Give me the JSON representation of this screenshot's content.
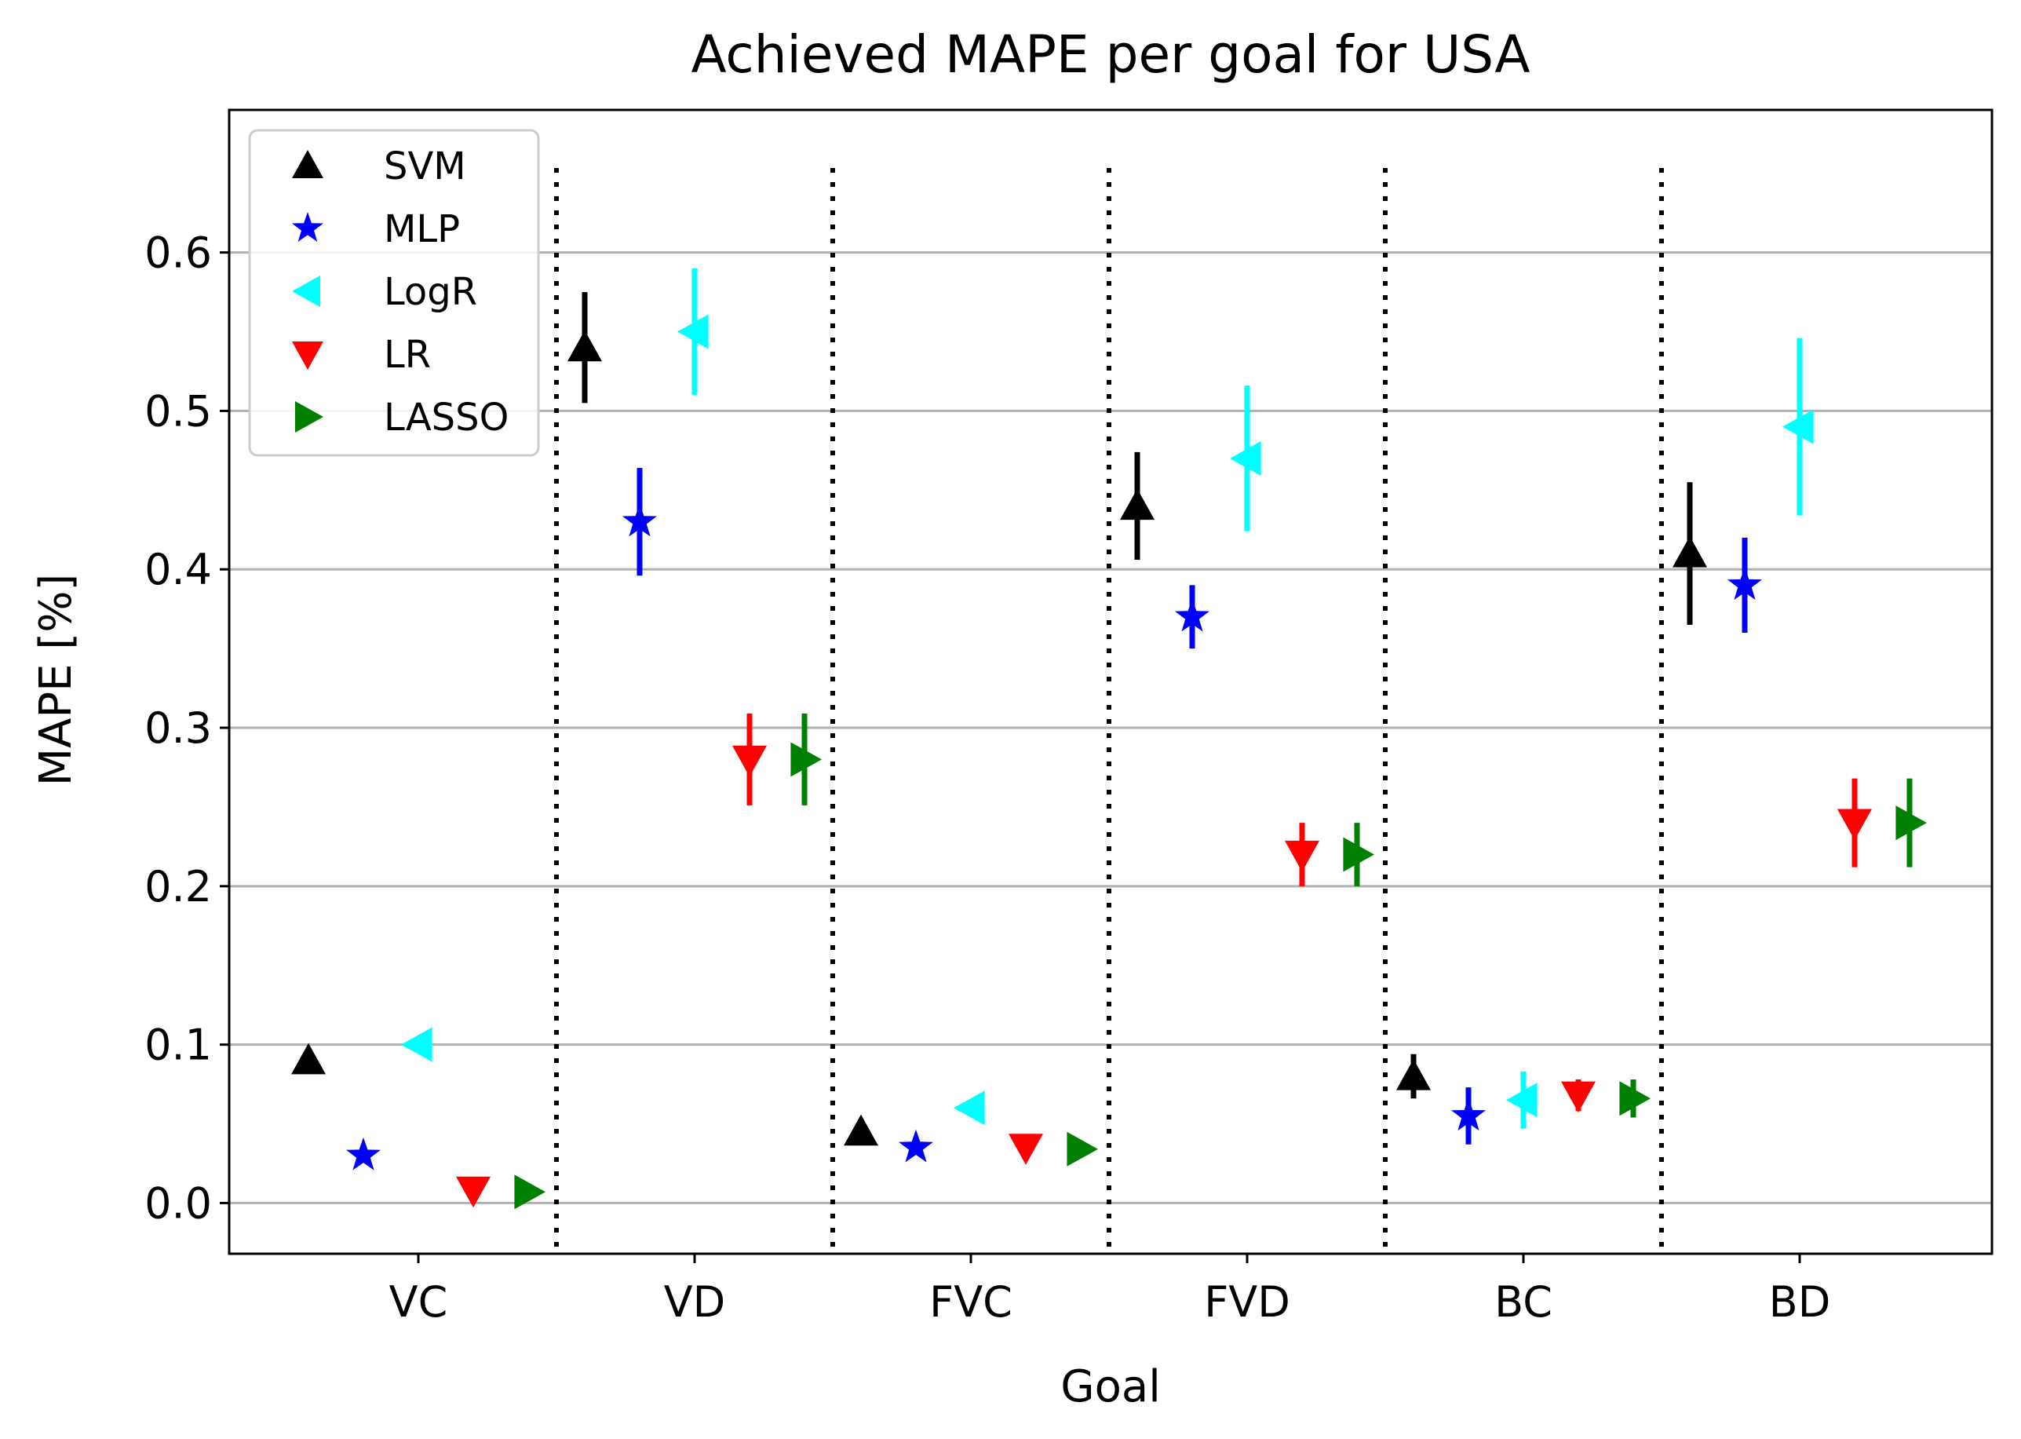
{
  "chart_data": {
    "type": "scatter",
    "title": "Achieved MAPE per goal for USA",
    "xlabel": "Goal",
    "ylabel": "MAPE [%]",
    "ylim": [
      -0.032,
      0.69
    ],
    "yticks": [
      0.0,
      0.1,
      0.2,
      0.3,
      0.4,
      0.5,
      0.6
    ],
    "ytick_labels": [
      "0.0",
      "0.1",
      "0.2",
      "0.3",
      "0.4",
      "0.5",
      "0.6"
    ],
    "grid": "horizontal",
    "categories": [
      "VC",
      "VD",
      "FVC",
      "FVD",
      "BC",
      "BD"
    ],
    "legend_position": "top-left",
    "series": [
      {
        "name": "SVM",
        "marker": "triangle-up",
        "color": "#000000",
        "values": [
          0.09,
          0.54,
          0.045,
          0.44,
          0.08,
          0.41
        ],
        "err": [
          0.0,
          0.035,
          0.0,
          0.034,
          0.014,
          0.045
        ]
      },
      {
        "name": "MLP",
        "marker": "star",
        "color": "#0000ff",
        "values": [
          0.03,
          0.43,
          0.035,
          0.37,
          0.055,
          0.39
        ],
        "err": [
          0.0,
          0.034,
          0.0,
          0.02,
          0.018,
          0.03
        ]
      },
      {
        "name": "LogR",
        "marker": "triangle-left",
        "color": "#00ffff",
        "values": [
          0.1,
          0.55,
          0.06,
          0.47,
          0.065,
          0.49
        ],
        "err": [
          0.0,
          0.04,
          0.0,
          0.046,
          0.018,
          0.056
        ]
      },
      {
        "name": "LR",
        "marker": "triangle-down",
        "color": "#ff0000",
        "values": [
          0.008,
          0.28,
          0.035,
          0.22,
          0.068,
          0.24
        ],
        "err": [
          0.0,
          0.029,
          0.0,
          0.02,
          0.01,
          0.028
        ]
      },
      {
        "name": "LASSO",
        "marker": "triangle-right",
        "color": "#008000",
        "values": [
          0.007,
          0.28,
          0.034,
          0.22,
          0.066,
          0.24
        ],
        "err": [
          0.0,
          0.029,
          0.0,
          0.02,
          0.012,
          0.028
        ]
      }
    ]
  }
}
